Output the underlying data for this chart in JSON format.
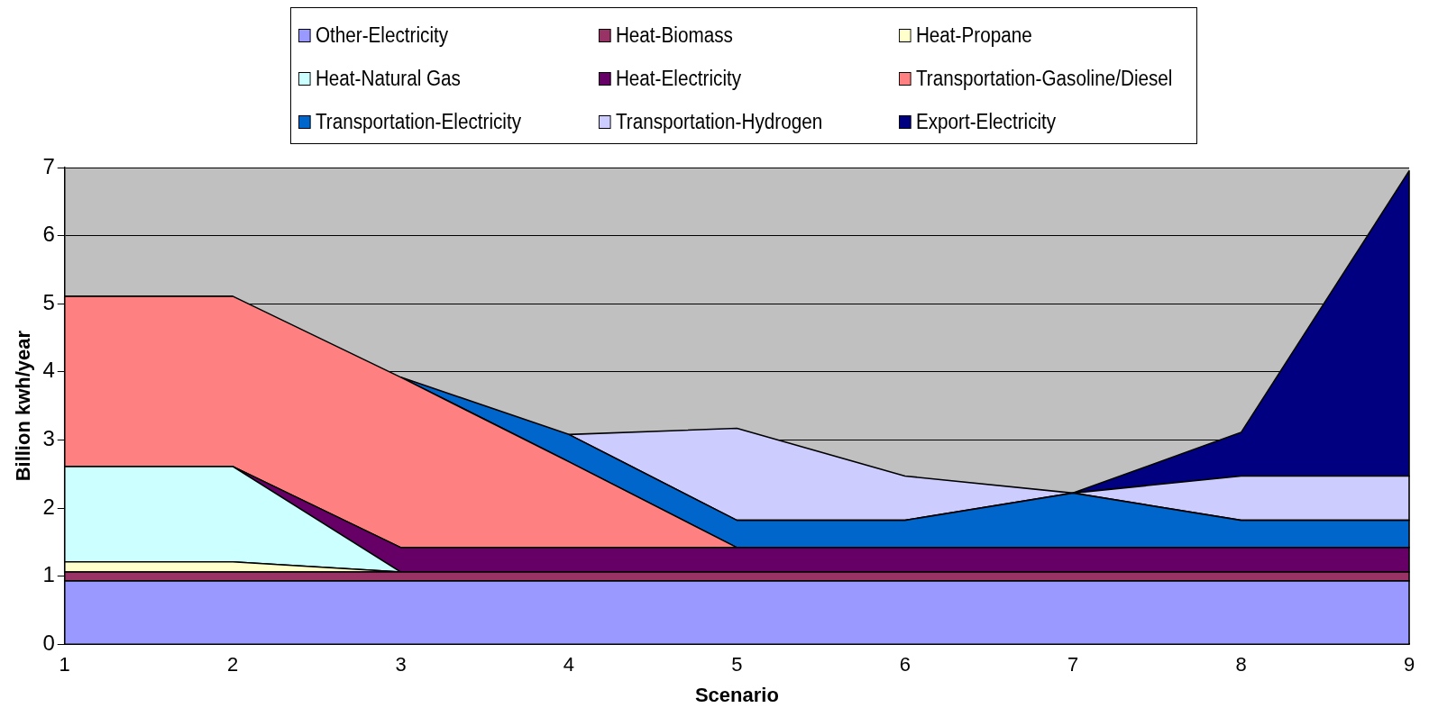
{
  "chart_data": {
    "type": "area",
    "stacked": true,
    "xlabel": "Scenario",
    "ylabel": "Billion kwh/year",
    "x": [
      1,
      2,
      3,
      4,
      5,
      6,
      7,
      8,
      9
    ],
    "xlim": [
      1,
      9
    ],
    "xticks": [
      1,
      2,
      3,
      4,
      5,
      6,
      7,
      8,
      9
    ],
    "ylim": [
      0,
      7
    ],
    "yticks": [
      0,
      1,
      2,
      3,
      4,
      5,
      6,
      7
    ],
    "grid": "y",
    "legend": "top",
    "series": [
      {
        "name": "Other-Electricity",
        "color": "#9999ff",
        "values": [
          0.93,
          0.93,
          0.93,
          0.93,
          0.93,
          0.93,
          0.93,
          0.93,
          0.93
        ]
      },
      {
        "name": "Heat-Biomass",
        "color": "#993366",
        "values": [
          0.13,
          0.13,
          0.13,
          0.13,
          0.13,
          0.13,
          0.13,
          0.13,
          0.13
        ]
      },
      {
        "name": "Heat-Propane",
        "color": "#ffffcc",
        "values": [
          0.15,
          0.15,
          0,
          null,
          null,
          null,
          null,
          null,
          null
        ]
      },
      {
        "name": "Heat-Natural Gas",
        "color": "#ccffff",
        "values": [
          1.4,
          1.4,
          0,
          null,
          null,
          null,
          null,
          null,
          null
        ]
      },
      {
        "name": "Heat-Electricity",
        "color": "#660066",
        "values": [
          null,
          0,
          0.36,
          0.36,
          0.36,
          0.36,
          0.36,
          0.36,
          0.36
        ]
      },
      {
        "name": "Transportation-Gasoline/Diesel",
        "color": "#ff8080",
        "values": [
          2.5,
          2.5,
          2.5,
          1.26,
          0,
          null,
          null,
          null,
          null
        ]
      },
      {
        "name": "Transportation-Electricity",
        "color": "#0066cc",
        "values": [
          null,
          null,
          0,
          0.4,
          0.4,
          0.4,
          0.8,
          0.4,
          0.4
        ]
      },
      {
        "name": "Transportation-Hydrogen",
        "color": "#ccccff",
        "values": [
          null,
          null,
          null,
          0,
          1.35,
          0.65,
          0,
          0.65,
          0.65
        ]
      },
      {
        "name": "Export-Electricity",
        "color": "#000080",
        "values": [
          null,
          null,
          null,
          null,
          null,
          null,
          0,
          0.64,
          4.48
        ]
      }
    ]
  }
}
